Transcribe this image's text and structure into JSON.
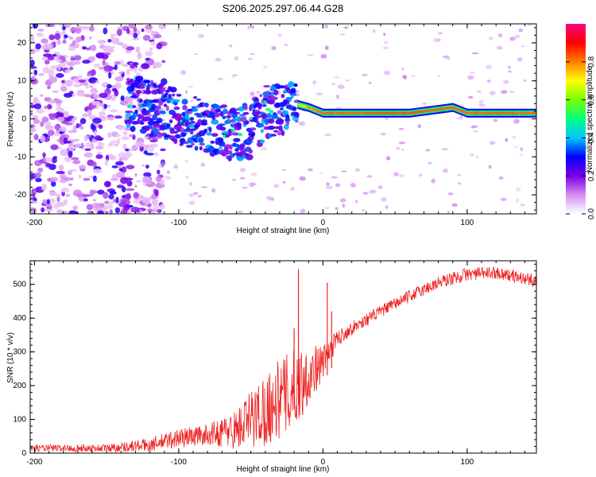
{
  "title": "S206.2025.297.06.44.G28",
  "chart_data": [
    {
      "type": "heatmap",
      "xlabel": "Height of straight line (km)",
      "ylabel": "Frequency (Hz)",
      "xlim": [
        -203,
        148
      ],
      "ylim": [
        -25,
        25
      ],
      "xticks": [
        -200,
        -100,
        0,
        100
      ],
      "xtick_labels": [
        "-200",
        "-100",
        "0",
        "100"
      ],
      "yticks": [
        -20,
        -10,
        0,
        10,
        20
      ],
      "ytick_labels": [
        "-20",
        "-10",
        "0",
        "10",
        "20"
      ],
      "colorbar": {
        "label": "Normalized spectral amplitude",
        "range": [
          0,
          1
        ],
        "ticks": [
          0.0,
          0.2,
          0.4,
          0.6,
          0.8
        ],
        "tick_labels": [
          "0.0",
          "0.2",
          "0.4",
          "0.6",
          "0.8"
        ],
        "colors": [
          "#ffffff",
          "#d58cf2",
          "#7a00e6",
          "#0000ff",
          "#00c8ff",
          "#00ff80",
          "#7aff00",
          "#ffff00",
          "#ff8000",
          "#ff0000",
          "#ff0080"
        ]
      },
      "ridge": {
        "x": [
          -130,
          -110,
          -100,
          -90,
          -80,
          -70,
          -60,
          -50,
          -40,
          -30,
          -20,
          -10,
          0,
          20,
          40,
          60,
          80,
          90,
          100,
          120,
          148
        ],
        "y": [
          4,
          2,
          0,
          -1,
          -2,
          -3,
          -4,
          -3,
          2,
          3,
          4,
          3,
          1.5,
          1.5,
          1.5,
          1.5,
          2.5,
          3,
          1.5,
          1.5,
          1.5
        ],
        "amplitude": [
          0.3,
          0.35,
          0.35,
          0.35,
          0.35,
          0.35,
          0.35,
          0.4,
          0.45,
          0.5,
          0.6,
          0.85,
          0.9,
          0.9,
          0.92,
          0.92,
          0.9,
          0.9,
          0.9,
          0.9,
          0.9
        ]
      },
      "noise_region": {
        "x": [
          -203,
          -130
        ],
        "y": [
          -25,
          25
        ],
        "amplitude": [
          0.05,
          0.3
        ]
      }
    },
    {
      "type": "line",
      "xlabel": "Height of straight line (km)",
      "ylabel": "SNR (10 * v/v)",
      "xlim": [
        -203,
        148
      ],
      "ylim": [
        0,
        570
      ],
      "xticks": [
        -200,
        -100,
        0,
        100
      ],
      "xtick_labels": [
        "-200",
        "-100",
        "0",
        "100"
      ],
      "yticks": [
        0,
        100,
        200,
        300,
        400,
        500
      ],
      "ytick_labels": [
        "0",
        "100",
        "200",
        "300",
        "400",
        "500"
      ],
      "color": "#ee2222",
      "trend": {
        "x": [
          -203,
          -150,
          -120,
          -100,
          -80,
          -60,
          -50,
          -40,
          -30,
          -20,
          -10,
          0,
          10,
          20,
          40,
          60,
          80,
          100,
          120,
          148
        ],
        "y": [
          15,
          15,
          25,
          45,
          55,
          70,
          100,
          130,
          160,
          190,
          230,
          270,
          340,
          370,
          420,
          465,
          505,
          530,
          535,
          510
        ],
        "noise": [
          10,
          12,
          20,
          30,
          30,
          60,
          90,
          110,
          120,
          120,
          90,
          50,
          25,
          20,
          18,
          18,
          20,
          20,
          18,
          20
        ]
      },
      "spikes": [
        {
          "x": -17,
          "y": 545
        },
        {
          "x": -20,
          "y": 370
        },
        {
          "x": 3,
          "y": 505
        },
        {
          "x": 6,
          "y": 420
        }
      ]
    }
  ]
}
